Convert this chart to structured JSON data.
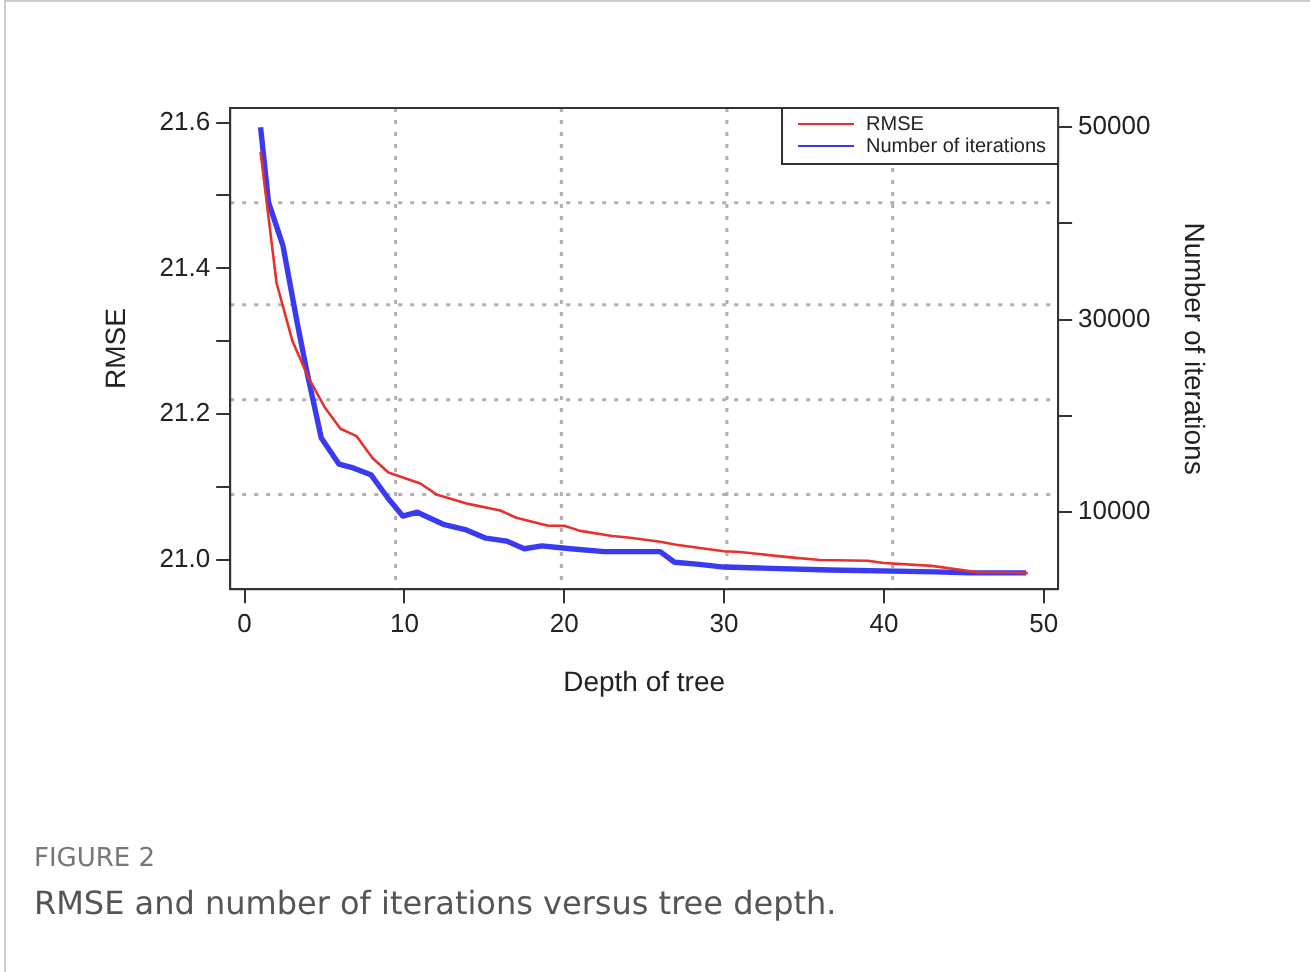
{
  "chart_data": {
    "type": "line",
    "xlabel": "Depth of tree",
    "ylabel": "RMSE",
    "y2label": "Number of iterations",
    "annotations": [
      "FIGURE 2",
      "RMSE and number of iterations versus tree depth."
    ],
    "xlim": [
      -0.9,
      50.9
    ],
    "xticks": [
      0,
      10,
      20,
      30,
      40,
      50
    ],
    "ylim": [
      20.96,
      21.62
    ],
    "yticks": [
      {
        "value": 21,
        "label": "21.0"
      },
      {
        "value": 21.1,
        "label": null
      },
      {
        "value": 21.2,
        "label": "21.2"
      },
      {
        "value": 21.3,
        "label": null
      },
      {
        "value": 21.4,
        "label": "21.4"
      },
      {
        "value": 21.5,
        "label": null
      },
      {
        "value": 21.6,
        "label": "21.6"
      }
    ],
    "y2lim": [
      2000,
      52000
    ],
    "y2ticks": [
      10000,
      {
        "value": 20000,
        "label": null
      },
      30000,
      {
        "value": 40000,
        "label": null
      },
      50000
    ],
    "legend": "top right",
    "ref_lines": [
      {
        "axis": "x",
        "value": 9.45,
        "color": "#b0b0b0",
        "line_style": "dotted"
      },
      {
        "axis": "x",
        "value": 19.82,
        "color": "#b0b0b0",
        "line_style": "dotted"
      },
      {
        "axis": "x",
        "value": 30.18,
        "color": "#b0b0b0",
        "line_style": "dotted"
      },
      {
        "axis": "x",
        "value": 40.55,
        "color": "#b0b0b0",
        "line_style": "dotted"
      },
      {
        "axis": "y",
        "value": 21.09,
        "color": "#b0b0b0",
        "line_style": "dotted"
      },
      {
        "axis": "y",
        "value": 21.22,
        "color": "#b0b0b0",
        "line_style": "dotted"
      },
      {
        "axis": "y",
        "value": 21.35,
        "color": "#b0b0b0",
        "line_style": "dotted"
      },
      {
        "axis": "y",
        "value": 21.49,
        "color": "#b0b0b0",
        "line_style": "dotted"
      }
    ],
    "series": [
      {
        "name": "RMSE",
        "color": "#e8312f",
        "x": [
          1,
          2,
          3,
          4,
          5,
          6,
          7,
          8,
          9,
          11,
          12,
          14,
          16,
          17,
          19,
          20,
          21,
          23,
          24,
          26,
          27,
          30,
          31,
          34,
          36,
          39,
          40,
          43,
          46,
          48,
          49
        ],
        "values": [
          21.56,
          21.38,
          21.3,
          21.25,
          21.21,
          21.18,
          21.17,
          21.14,
          21.12,
          21.105,
          21.09,
          21.077,
          21.068,
          21.058,
          21.047,
          21.047,
          21.04,
          21.033,
          21.031,
          21.025,
          21.021,
          21.012,
          21.011,
          21.004,
          21.0,
          20.999,
          20.996,
          20.992,
          20.983,
          20.983,
          20.982
        ]
      },
      {
        "name": "Number of iterations",
        "color": "#3a3af0",
        "axis": "y2",
        "x": [
          1,
          1.5,
          2.4,
          3.3,
          3.9,
          4.8,
          5.9,
          6.8,
          7.9,
          9,
          9.9,
          10.8,
          12.5,
          13.8,
          15.1,
          16.4,
          17.5,
          18.6,
          20.4,
          22.5,
          26,
          26.9,
          28.3,
          30,
          32.2,
          36.6,
          43.2,
          45.4,
          48.9
        ],
        "values": [
          50000,
          42200,
          37700,
          29600,
          24600,
          17700,
          15000,
          14600,
          13900,
          11400,
          9600,
          10000,
          8700,
          8200,
          7300,
          7000,
          6200,
          6500,
          6200,
          5900,
          5900,
          4800,
          4600,
          4300,
          4200,
          4000,
          3800,
          3700,
          3700
        ]
      }
    ]
  }
}
